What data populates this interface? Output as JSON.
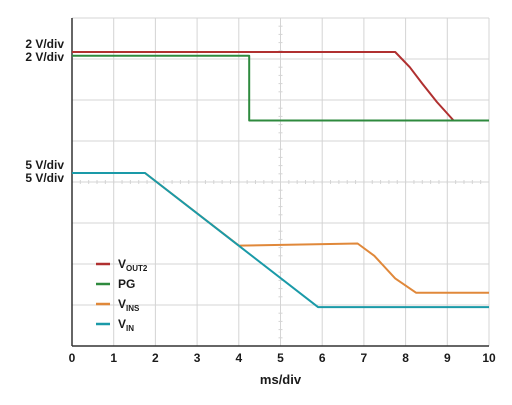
{
  "chart_data": {
    "type": "line",
    "title": "",
    "xlabel": "ms/div",
    "ylabel": "",
    "xlim": [
      0,
      10
    ],
    "ylim": [
      0,
      8
    ],
    "x_ticks": [
      "0",
      "1",
      "2",
      "3",
      "4",
      "5",
      "6",
      "7",
      "8",
      "9",
      "10"
    ],
    "grid": true,
    "legend_position": "bottom-left",
    "y_scale_labels": [
      {
        "text": "2 V/div",
        "y": 7.17
      },
      {
        "text": "2 V/div",
        "y": 7.17
      },
      {
        "text": "5 V/div",
        "y": 4.22
      },
      {
        "text": "5 V/div",
        "y": 4.22
      }
    ],
    "series": [
      {
        "name": "OUT2",
        "prefix": "V",
        "sub": "OUT2",
        "color": "#b03030",
        "x": [
          0,
          7.75,
          8.1,
          8.4,
          8.75,
          9.15,
          10
        ],
        "y": [
          7.17,
          7.17,
          6.8,
          6.4,
          5.95,
          5.5,
          5.5
        ]
      },
      {
        "name": "PG",
        "prefix": "",
        "sub": "",
        "color": "#2e8a3e",
        "x": [
          0,
          4.25,
          4.25,
          10
        ],
        "y": [
          7.08,
          7.08,
          5.5,
          5.5
        ]
      },
      {
        "name": "INS",
        "prefix": "V",
        "sub": "INS",
        "color": "#e0883a",
        "x": [
          0,
          1.75,
          4.0,
          6.85,
          7.25,
          7.75,
          8.25,
          10
        ],
        "y": [
          4.22,
          4.22,
          2.45,
          2.5,
          2.2,
          1.65,
          1.3,
          1.3
        ]
      },
      {
        "name": "IN",
        "prefix": "V",
        "sub": "IN",
        "color": "#1a9aa8",
        "x": [
          0,
          1.75,
          5.9,
          10
        ],
        "y": [
          4.22,
          4.22,
          0.95,
          0.95
        ]
      }
    ]
  }
}
